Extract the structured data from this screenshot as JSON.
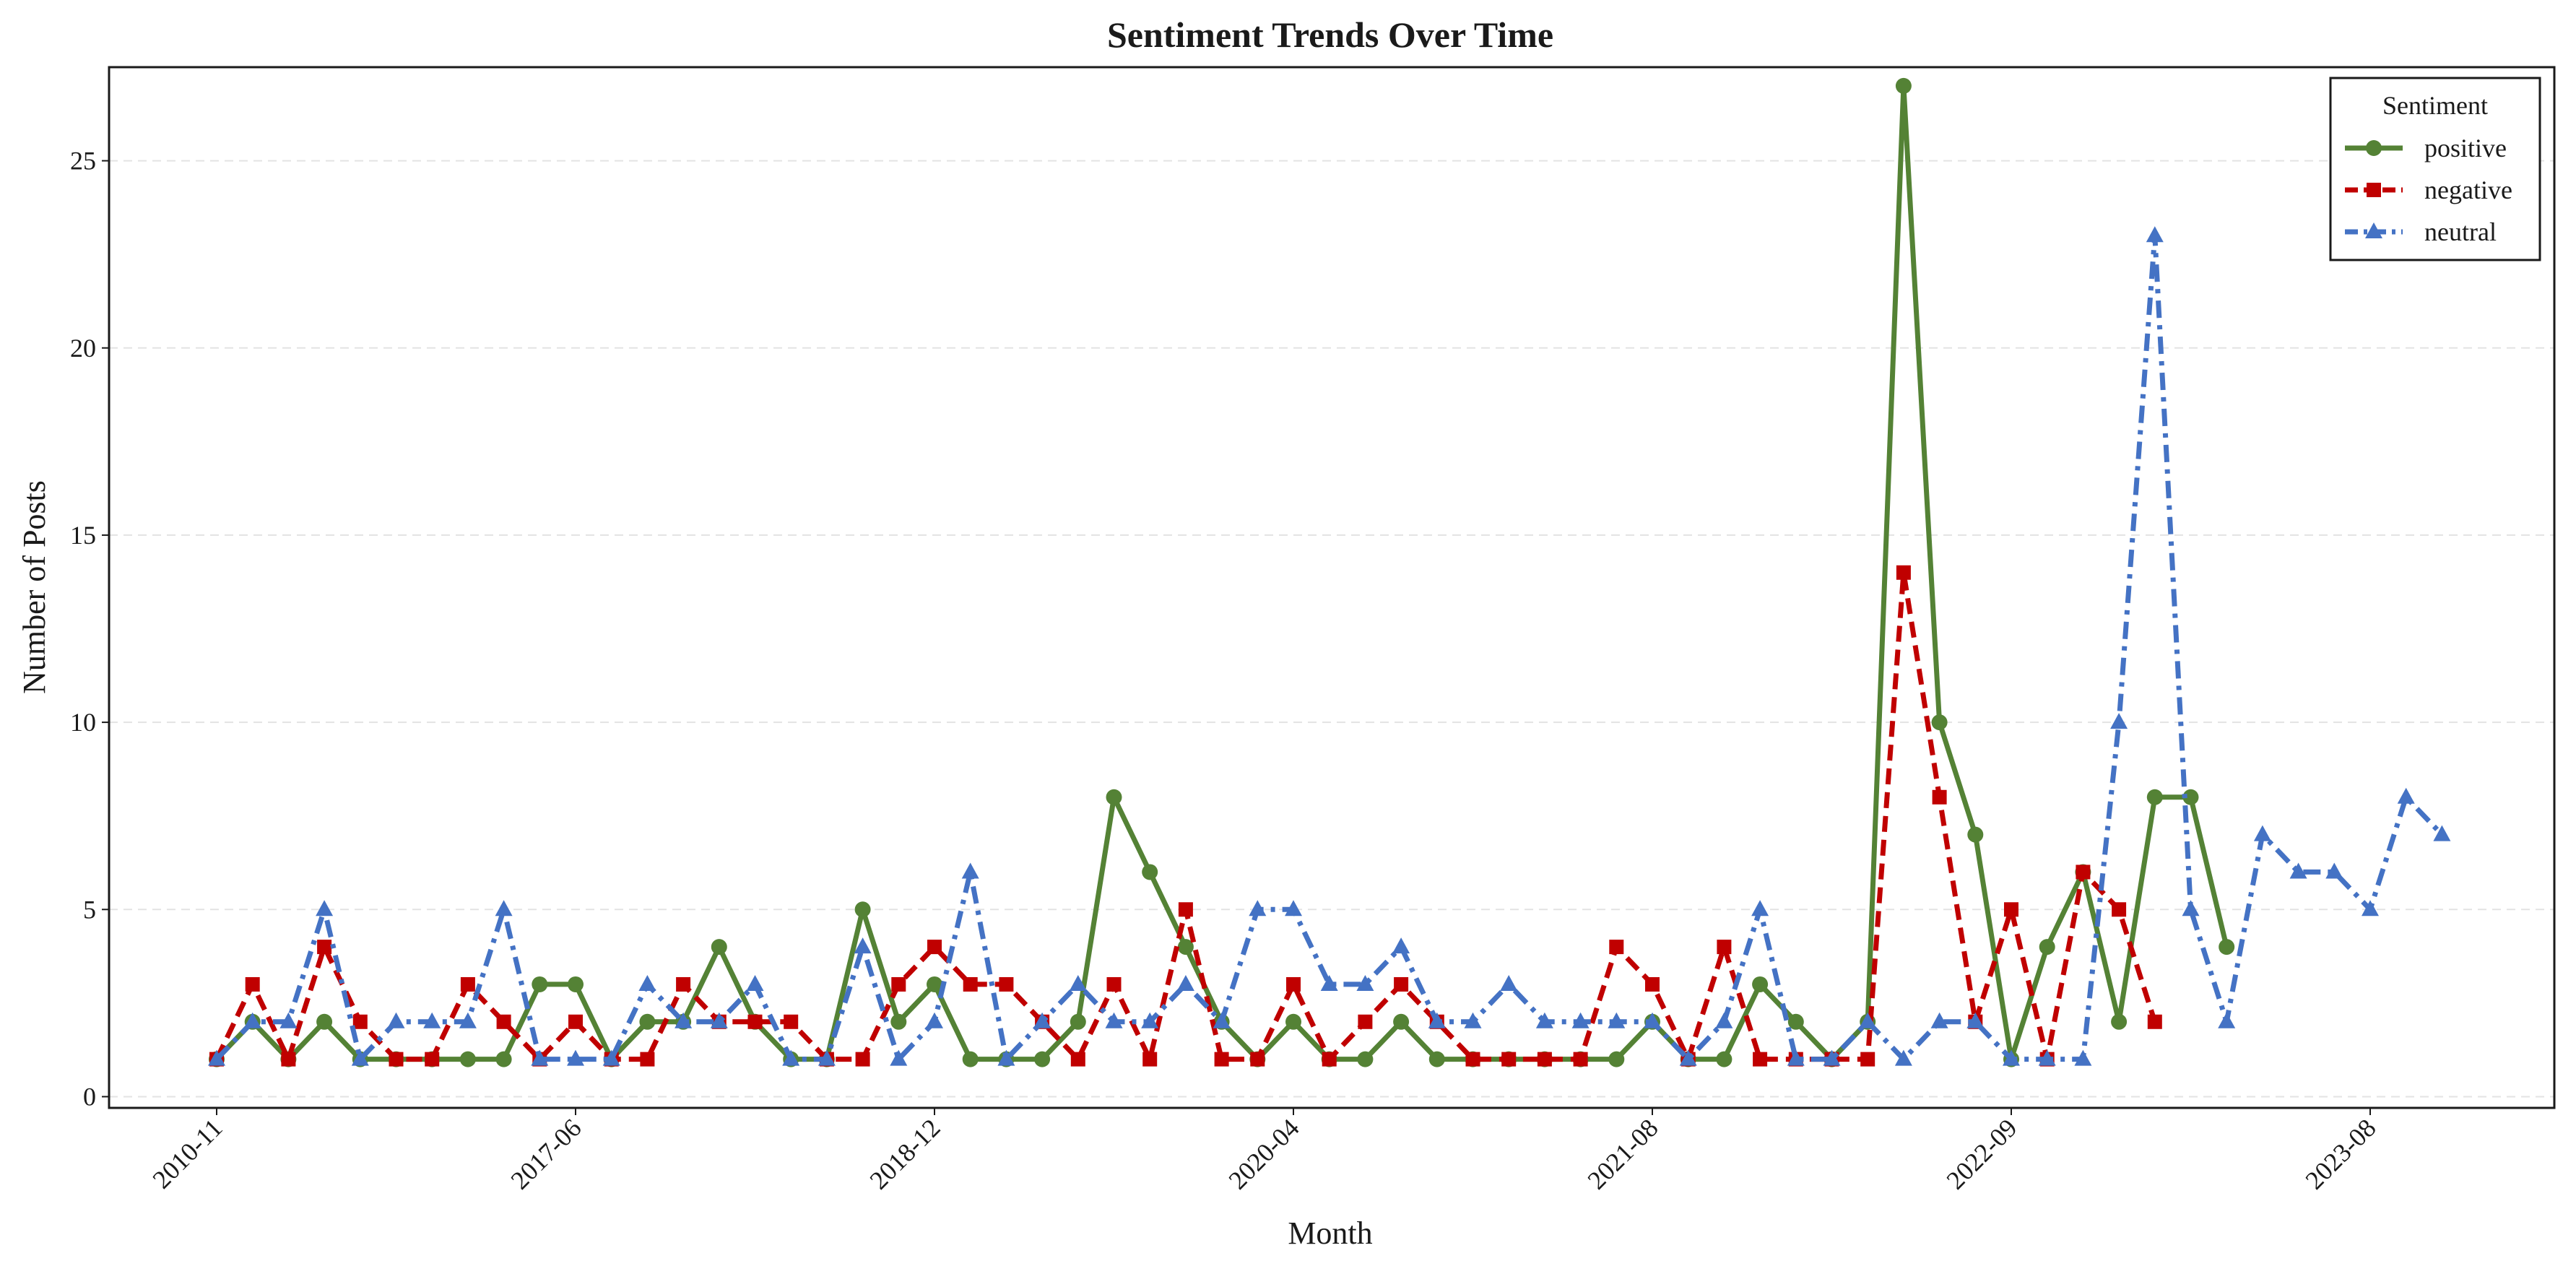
{
  "chart_data": {
    "type": "line",
    "title": "Sentiment Trends Over Time",
    "xlabel": "Month",
    "ylabel": "Number of Posts",
    "ylim": [
      -0.3,
      27.5
    ],
    "yticks": [
      0,
      5,
      10,
      15,
      20,
      25
    ],
    "grid": "horizontal dashed",
    "legend": {
      "title": "Sentiment",
      "placement": "top-right"
    },
    "n_points": 64,
    "xticks": [
      {
        "index": 0,
        "label": "2010-11"
      },
      {
        "index": 10,
        "label": "2017-06"
      },
      {
        "index": 20,
        "label": "2018-12"
      },
      {
        "index": 30,
        "label": "2020-04"
      },
      {
        "index": 40,
        "label": "2021-08"
      },
      {
        "index": 50,
        "label": "2022-09"
      },
      {
        "index": 60,
        "label": "2023-08"
      }
    ],
    "series": [
      {
        "name": "positive",
        "color": "#548235",
        "dash": "solid",
        "marker": "circle",
        "values": [
          1,
          2,
          1,
          2,
          1,
          1,
          1,
          1,
          1,
          3,
          3,
          1,
          2,
          2,
          4,
          2,
          1,
          1,
          5,
          2,
          3,
          1,
          1,
          1,
          2,
          8,
          6,
          4,
          2,
          1,
          2,
          1,
          1,
          2,
          1,
          1,
          1,
          1,
          1,
          1,
          2,
          1,
          1,
          3,
          2,
          1,
          2,
          27,
          10,
          7,
          1,
          4,
          6,
          2,
          8,
          8,
          4,
          null,
          null,
          null,
          null,
          null,
          null,
          null
        ]
      },
      {
        "name": "negative",
        "color": "#C00000",
        "dash": "dashed",
        "marker": "square",
        "values": [
          1,
          3,
          1,
          4,
          2,
          1,
          1,
          3,
          2,
          1,
          2,
          1,
          1,
          3,
          2,
          2,
          2,
          1,
          1,
          3,
          4,
          3,
          3,
          2,
          1,
          3,
          1,
          5,
          1,
          1,
          3,
          1,
          2,
          3,
          2,
          1,
          1,
          1,
          1,
          4,
          3,
          1,
          4,
          1,
          1,
          1,
          1,
          14,
          8,
          2,
          5,
          1,
          6,
          5,
          2,
          null,
          null,
          null,
          null,
          null,
          null,
          null,
          null,
          null
        ]
      },
      {
        "name": "neutral",
        "color": "#4472C4",
        "dash": "dashdot",
        "marker": "triangle",
        "values": [
          1,
          2,
          2,
          5,
          1,
          2,
          2,
          2,
          5,
          1,
          1,
          1,
          3,
          2,
          2,
          3,
          1,
          1,
          4,
          1,
          2,
          6,
          1,
          2,
          3,
          2,
          2,
          3,
          2,
          5,
          5,
          3,
          3,
          4,
          2,
          2,
          3,
          2,
          2,
          2,
          2,
          1,
          2,
          5,
          1,
          1,
          2,
          1,
          2,
          2,
          1,
          1,
          1,
          10,
          23,
          5,
          2,
          7,
          6,
          6,
          5,
          8,
          7,
          null
        ]
      }
    ]
  }
}
